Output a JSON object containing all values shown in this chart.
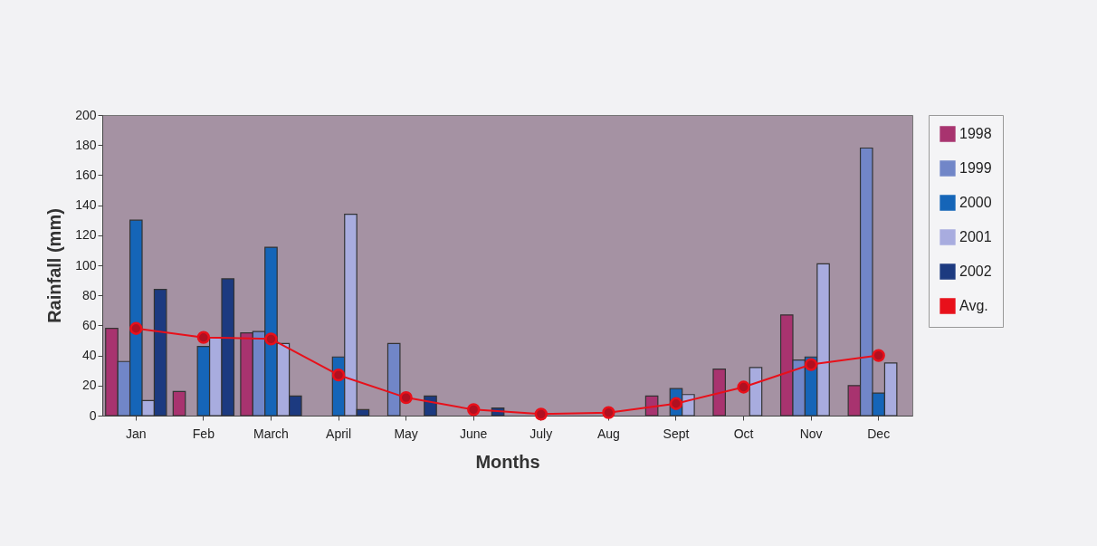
{
  "chart_data": {
    "type": "bar",
    "xlabel": "Months",
    "ylabel": "Rainfall (mm)",
    "categories": [
      "Jan",
      "Feb",
      "March",
      "April",
      "May",
      "June",
      "July",
      "Aug",
      "Sept",
      "Oct",
      "Nov",
      "Dec"
    ],
    "series": [
      {
        "name": "1998",
        "color": "#a8336f",
        "values": [
          58,
          16,
          55,
          null,
          null,
          null,
          null,
          null,
          13,
          31,
          67,
          20
        ]
      },
      {
        "name": "1999",
        "color": "#7186c8",
        "values": [
          36,
          null,
          56,
          null,
          48,
          null,
          null,
          null,
          null,
          null,
          37,
          178
        ]
      },
      {
        "name": "2000",
        "color": "#1565b8",
        "values": [
          130,
          46,
          112,
          39,
          null,
          null,
          null,
          null,
          18,
          null,
          39,
          15
        ]
      },
      {
        "name": "2001",
        "color": "#a8acdf",
        "values": [
          10,
          52,
          48,
          134,
          null,
          null,
          null,
          null,
          14,
          32,
          101,
          35
        ]
      },
      {
        "name": "2002",
        "color": "#1c3a80",
        "values": [
          84,
          91,
          13,
          4,
          13,
          5,
          null,
          null,
          null,
          null,
          null,
          null
        ]
      },
      {
        "name": "Avg.",
        "type": "line",
        "color": "#e8101a",
        "marker": "circle",
        "values": [
          58,
          52,
          51,
          27,
          12,
          4,
          1,
          2,
          8,
          19,
          34,
          40
        ]
      }
    ],
    "ylim": [
      0,
      200
    ],
    "yticks": [
      0,
      20,
      40,
      60,
      80,
      100,
      120,
      140,
      160,
      180,
      200
    ],
    "grid": false,
    "legend": "right"
  }
}
